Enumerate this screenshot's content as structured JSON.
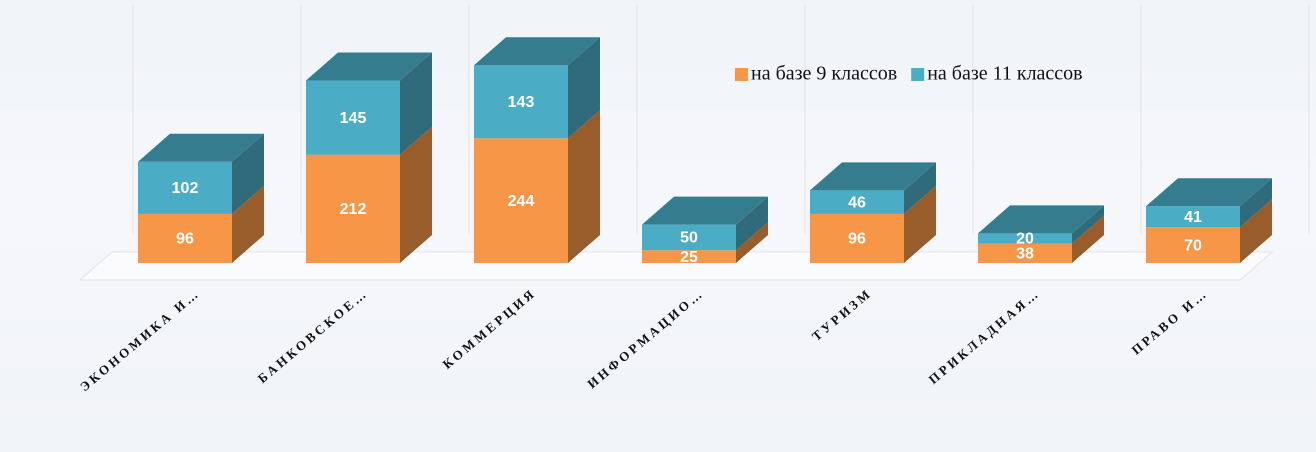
{
  "chart_data": {
    "type": "bar3d_stacked",
    "categories": [
      "ЭКОНОМИКА И…",
      "БАНКОВСКОЕ…",
      "КОММЕРЦИЯ",
      "ИНФОРМАЦИО…",
      "ТУРИЗМ",
      "ПРИКЛАДНАЯ…",
      "ПРАВО И…"
    ],
    "series": [
      {
        "name": "на базе 9 классов",
        "color": "#f79646",
        "values": [
          96,
          212,
          244,
          25,
          96,
          38,
          70
        ]
      },
      {
        "name": "на базе 11 классов",
        "color": "#4bacc6",
        "values": [
          102,
          145,
          143,
          50,
          46,
          20,
          41
        ]
      }
    ],
    "ylim": [
      0,
      450
    ],
    "legend": "top-right"
  }
}
